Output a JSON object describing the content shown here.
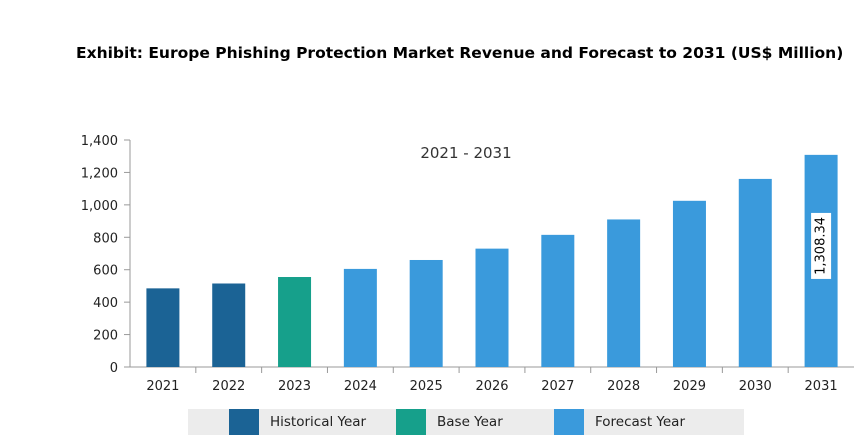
{
  "title": "Exhibit: Europe Phishing Protection Market Revenue and Forecast to 2031 (US$ Million)",
  "colors": {
    "historical": "#1b6395",
    "base": "#16a08b",
    "forecast": "#3a9adc",
    "axis": "#999999",
    "legend_bg": "#ececec"
  },
  "chart_data": {
    "type": "bar",
    "title": "Exhibit: Europe Phishing Protection Market Revenue and Forecast to 2031 (US$ Million)",
    "annotation": "2021 - 2031",
    "categories": [
      "2021",
      "2022",
      "2023",
      "2024",
      "2025",
      "2026",
      "2027",
      "2028",
      "2029",
      "2030",
      "2031"
    ],
    "values": [
      485,
      515,
      555,
      605,
      660,
      730,
      815,
      910,
      1025,
      1160,
      1308.34
    ],
    "groups": [
      "historical",
      "historical",
      "base",
      "forecast",
      "forecast",
      "forecast",
      "forecast",
      "forecast",
      "forecast",
      "forecast",
      "forecast"
    ],
    "data_labels": [
      {
        "category": "2031",
        "text": "1,308.34"
      }
    ],
    "ylim": [
      0,
      1400
    ],
    "yticks": [
      0,
      200,
      400,
      600,
      800,
      1000,
      1200,
      1400
    ],
    "ytick_labels": [
      "0",
      "200",
      "400",
      "600",
      "800",
      "1,000",
      "1,200",
      "1,400"
    ],
    "grid": false,
    "legend": {
      "placement": "bottom",
      "entries": [
        {
          "key": "historical",
          "label": "Historical Year"
        },
        {
          "key": "base",
          "label": "Base Year"
        },
        {
          "key": "forecast",
          "label": "Forecast Year"
        }
      ]
    }
  }
}
